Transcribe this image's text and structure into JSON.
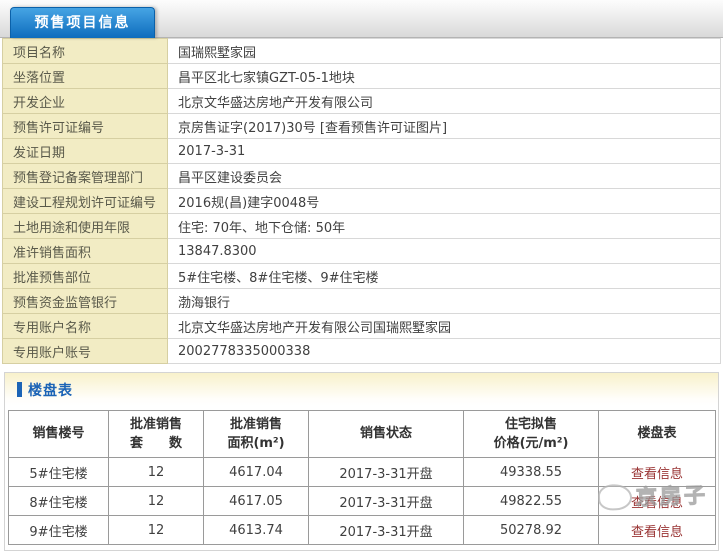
{
  "tab": {
    "label": "预售项目信息"
  },
  "info_table": {
    "rows": [
      {
        "label": "项目名称",
        "value": "国瑞熙墅家园"
      },
      {
        "label": "坐落位置",
        "value": "昌平区北七家镇GZT-05-1地块"
      },
      {
        "label": "开发企业",
        "value": "北京文华盛达房地产开发有限公司"
      },
      {
        "label": "预售许可证编号",
        "value": "京房售证字(2017)30号",
        "link": "[查看预售许可证图片]"
      },
      {
        "label": "发证日期",
        "value": "2017-3-31"
      },
      {
        "label": "预售登记备案管理部门",
        "value": "昌平区建设委员会"
      },
      {
        "label": "建设工程规划许可证编号",
        "value": "2016规(昌)建字0048号"
      },
      {
        "label": "土地用途和使用年限",
        "value": "住宅: 70年、地下仓储: 50年"
      },
      {
        "label": "准许销售面积",
        "value": "13847.8300"
      },
      {
        "label": "批准预售部位",
        "value": "5#住宅楼、8#住宅楼、9#住宅楼"
      },
      {
        "label": "预售资金监管银行",
        "value": "渤海银行"
      },
      {
        "label": "专用账户名称",
        "value": "北京文华盛达房地产开发有限公司国瑞熙墅家园"
      },
      {
        "label": "专用账户账号",
        "value": "2002778335000338"
      }
    ]
  },
  "building_section": {
    "title": "楼盘表",
    "table": {
      "headers": [
        "销售楼号",
        "批准销售\n套　　数",
        "批准销售\n面积(m²)",
        "销售状态",
        "住宅拟售\n价格(元/m²)",
        "楼盘表"
      ],
      "rows": [
        {
          "cells": [
            "5#住宅楼",
            "12",
            "4617.04",
            "2017-3-31开盘",
            "49338.55"
          ],
          "action": "查看信息"
        },
        {
          "cells": [
            "8#住宅楼",
            "12",
            "4617.05",
            "2017-3-31开盘",
            "49822.55"
          ],
          "action": "查看信息"
        },
        {
          "cells": [
            "9#住宅楼",
            "12",
            "4613.74",
            "2017-3-31开盘",
            "50278.92"
          ],
          "action": "查看信息"
        }
      ]
    }
  },
  "watermark": {
    "text": "京房子"
  },
  "colors": {
    "tab_blue": "#0d6cbd",
    "title_blue": "#1c64b6",
    "label_bg": "#f2ecc4",
    "link_red": "#993333"
  }
}
